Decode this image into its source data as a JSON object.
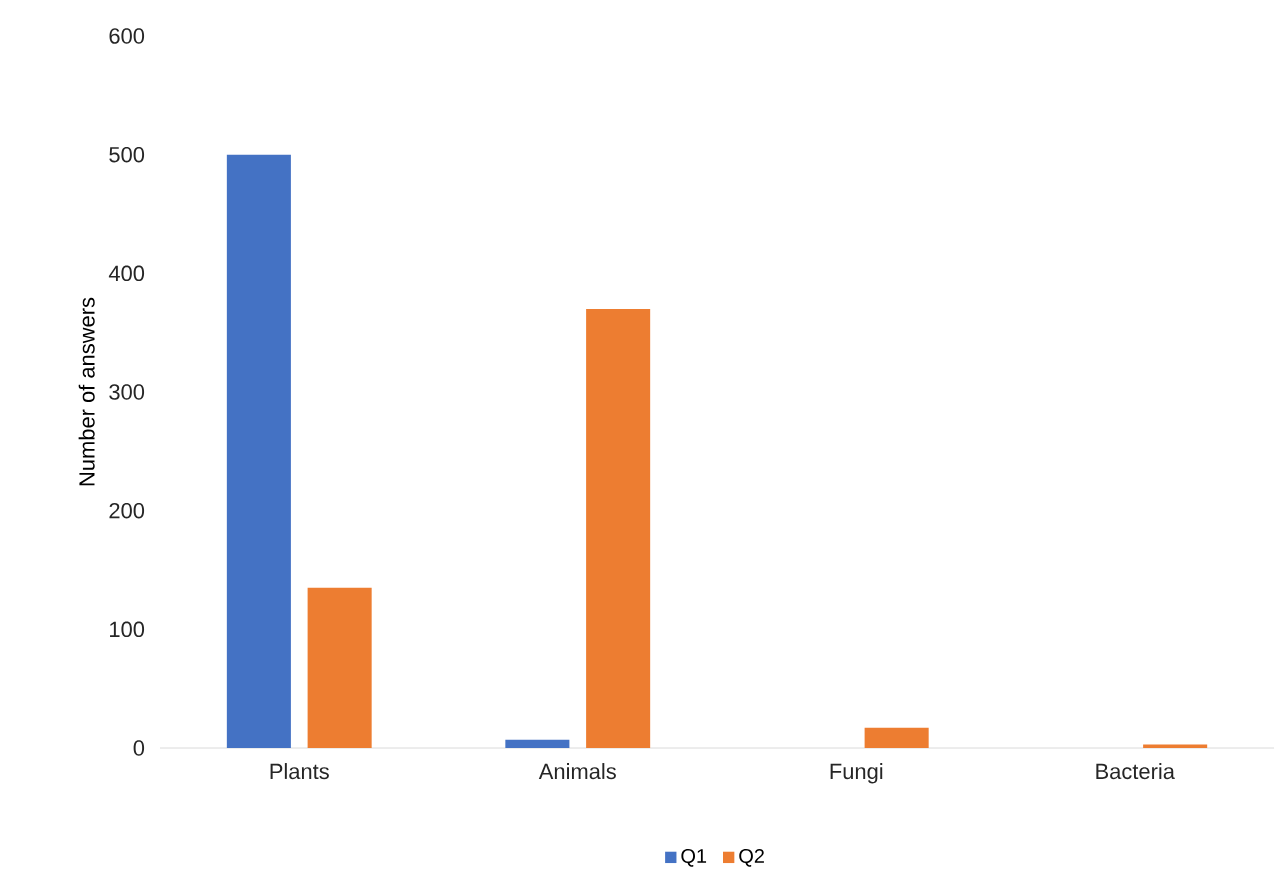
{
  "chart_data": {
    "type": "bar",
    "ylabel": "Number of answers",
    "categories": [
      "Plants",
      "Animals",
      "Fungi",
      "Bacteria"
    ],
    "series": [
      {
        "name": "Q1",
        "color": "#4472c4",
        "values": [
          500,
          7,
          0,
          0
        ]
      },
      {
        "name": "Q2",
        "color": "#ed7d31",
        "values": [
          135,
          370,
          17,
          3
        ]
      }
    ],
    "ylim": [
      0,
      600
    ],
    "yticks": [
      0,
      100,
      200,
      300,
      400,
      500,
      600
    ],
    "legend": "bottom"
  }
}
